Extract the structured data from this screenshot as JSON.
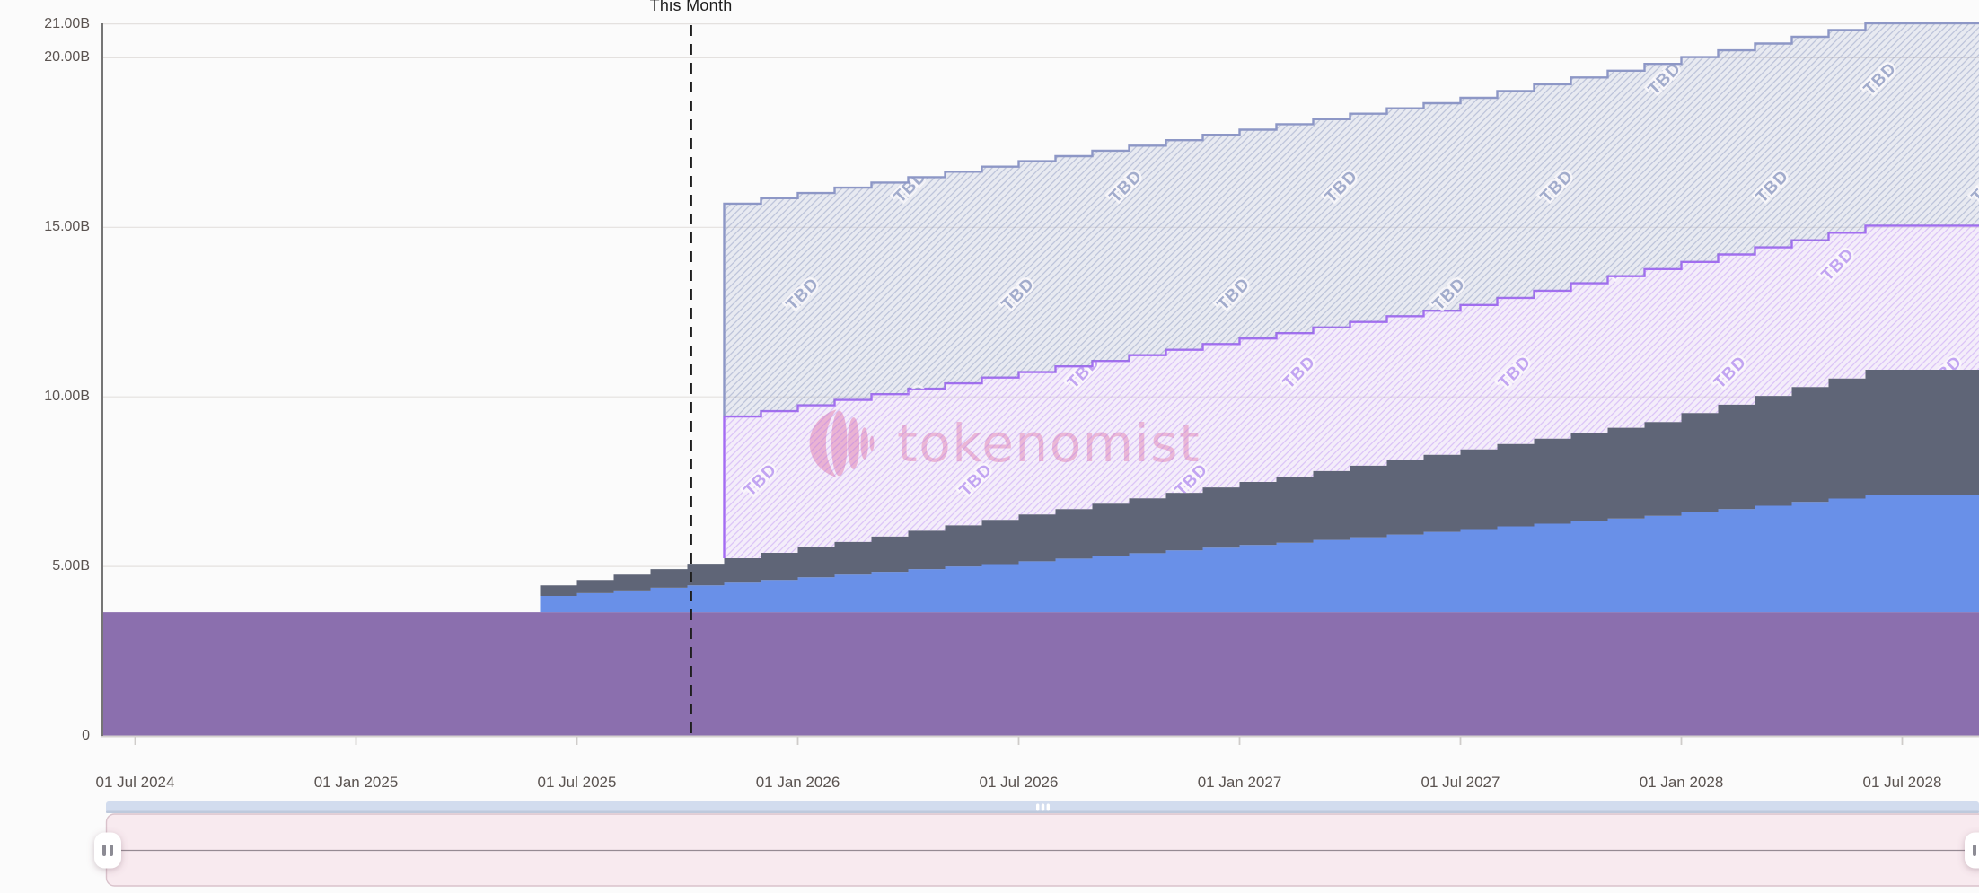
{
  "watermark": {
    "text": "tokenomist",
    "brand_color": "#e1699a"
  },
  "chart_data": {
    "type": "area",
    "subtype": "stacked-step-area",
    "title": "",
    "xlabel": "",
    "ylabel": "",
    "x_axis": {
      "start_month": "Jun 2024",
      "end_month": "Sep 2028",
      "step": "1 month",
      "months_total": 52
    },
    "x_ticks": [
      {
        "label": "01 Jul 2024",
        "month_index": 1
      },
      {
        "label": "01 Jan 2025",
        "month_index": 7
      },
      {
        "label": "01 Jul 2025",
        "month_index": 13
      },
      {
        "label": "01 Jan 2026",
        "month_index": 19
      },
      {
        "label": "01 Jul 2026",
        "month_index": 25
      },
      {
        "label": "01 Jan 2027",
        "month_index": 31
      },
      {
        "label": "01 Jul 2027",
        "month_index": 37
      },
      {
        "label": "01 Jan 2028",
        "month_index": 43
      },
      {
        "label": "01 Jul 2028",
        "month_index": 49
      }
    ],
    "y_ticks": [
      {
        "label": "0",
        "value": 0
      },
      {
        "label": "5.00B",
        "value": 5
      },
      {
        "label": "10.00B",
        "value": 10
      },
      {
        "label": "15.00B",
        "value": 15
      },
      {
        "label": "20.00B",
        "value": 20
      },
      {
        "label": "21.00B",
        "value": 21
      }
    ],
    "y_unit": "B",
    "ylim": [
      0,
      21.5
    ],
    "grid": true,
    "legend": false,
    "annotation": {
      "label": "This Month",
      "month_index": 16.1
    },
    "series": [
      {
        "id": "purple-solid",
        "style": "solid",
        "color": "#8b6fae",
        "start_index": 0,
        "count": 52,
        "tops_constant": 3.65
      },
      {
        "id": "blue-solid",
        "style": "solid",
        "color": "#6990e8",
        "start_index": 12,
        "tops": [
          4.13,
          4.21,
          4.29,
          4.37,
          4.44,
          4.52,
          4.6,
          4.68,
          4.76,
          4.84,
          4.92,
          5.0,
          5.07,
          5.15,
          5.23,
          5.31,
          5.39,
          5.47,
          5.55,
          5.63,
          5.7,
          5.78,
          5.86,
          5.94,
          6.02,
          6.1,
          6.18,
          6.26,
          6.33,
          6.41,
          6.49,
          6.59,
          6.69,
          6.79,
          6.9,
          7.0,
          7.1,
          7.1,
          7.1,
          7.1
        ]
      },
      {
        "id": "slate-solid",
        "style": "solid",
        "color": "#5f6577",
        "start_index": 12,
        "tops": [
          4.44,
          4.6,
          4.76,
          4.92,
          5.08,
          5.24,
          5.4,
          5.56,
          5.72,
          5.88,
          6.05,
          6.21,
          6.37,
          6.53,
          6.69,
          6.85,
          7.01,
          7.17,
          7.33,
          7.49,
          7.65,
          7.81,
          7.97,
          8.13,
          8.29,
          8.45,
          8.61,
          8.77,
          8.93,
          9.09,
          9.26,
          9.52,
          9.77,
          10.03,
          10.29,
          10.54,
          10.8,
          10.8,
          10.8,
          10.8
        ]
      },
      {
        "id": "violet-hatched",
        "style": "hatched",
        "label": "TBD",
        "border_color": "#a46cf3",
        "hatch_line_color": "rgba(167,112,240,0.35)",
        "fill_color": "rgba(213,168,246,0.16)",
        "label_color": "rgba(160,115,235,0.62)",
        "start_index": 17,
        "tops": [
          9.42,
          9.58,
          9.75,
          9.91,
          10.08,
          10.24,
          10.4,
          10.57,
          10.73,
          10.9,
          11.06,
          11.23,
          11.39,
          11.56,
          11.72,
          11.88,
          12.05,
          12.21,
          12.38,
          12.54,
          12.71,
          12.92,
          13.13,
          13.35,
          13.56,
          13.77,
          13.98,
          14.2,
          14.41,
          14.62,
          14.84,
          15.05,
          15.05,
          15.05,
          15.05
        ]
      },
      {
        "id": "bluegray-hatched",
        "style": "hatched",
        "label": "TBD",
        "border_color": "#8d97c6",
        "hatch_line_color": "rgba(110,126,175,0.38)",
        "fill_color": "rgba(138,152,195,0.16)",
        "label_color": "rgba(115,130,178,0.65)",
        "start_index": 17,
        "tops": [
          15.7,
          15.86,
          16.01,
          16.17,
          16.32,
          16.48,
          16.64,
          16.79,
          16.95,
          17.1,
          17.26,
          17.41,
          17.57,
          17.73,
          17.88,
          18.04,
          18.19,
          18.35,
          18.51,
          18.66,
          18.82,
          19.02,
          19.22,
          19.42,
          19.62,
          19.82,
          20.02,
          20.22,
          20.42,
          20.62,
          20.82,
          21.02,
          21.02,
          21.02,
          21.02
        ]
      }
    ]
  }
}
